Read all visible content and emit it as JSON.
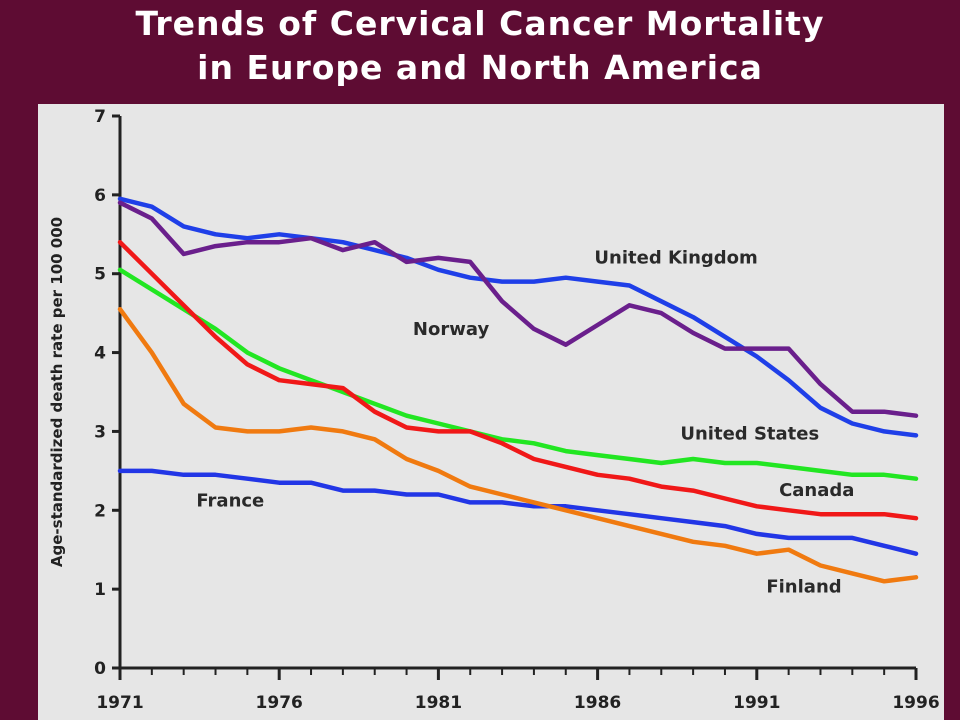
{
  "slide": {
    "title_line1": "Trends of Cervical Cancer Mortality",
    "title_line2": "in Europe and North America"
  },
  "colors": {
    "background": "#5e0c33",
    "panel": "#e6e6e6",
    "axis": "#222222"
  },
  "chart_data": {
    "type": "line",
    "title": "",
    "xlabel": "",
    "ylabel": "Age-standardized death rate per 100 000",
    "xlim": [
      1971,
      1996
    ],
    "ylim": [
      0,
      7
    ],
    "x_tick_labels": [
      "1971",
      "1976",
      "1981",
      "1986",
      "1991",
      "1996"
    ],
    "y_tick_labels": [
      "0",
      "1",
      "2",
      "3",
      "4",
      "5",
      "6",
      "7"
    ],
    "x": [
      1971,
      1972,
      1973,
      1974,
      1975,
      1976,
      1977,
      1978,
      1979,
      1980,
      1981,
      1982,
      1983,
      1984,
      1985,
      1986,
      1987,
      1988,
      1989,
      1990,
      1991,
      1992,
      1993,
      1994,
      1995,
      1996
    ],
    "series": [
      {
        "name": "United Kingdom",
        "color": "#1f3fe8",
        "values": [
          5.95,
          5.85,
          5.6,
          5.5,
          5.45,
          5.5,
          5.45,
          5.4,
          5.3,
          5.2,
          5.05,
          4.95,
          4.9,
          4.9,
          4.95,
          4.9,
          4.85,
          4.65,
          4.45,
          4.2,
          3.95,
          3.65,
          3.3,
          3.1,
          3.0,
          2.95
        ],
        "label_x": 1985.9,
        "label_y": 5.13
      },
      {
        "name": "Norway",
        "color": "#6a1f8c",
        "values": [
          5.9,
          5.7,
          5.25,
          5.35,
          5.4,
          5.4,
          5.45,
          5.3,
          5.4,
          5.15,
          5.2,
          5.15,
          4.65,
          4.3,
          4.1,
          4.35,
          4.6,
          4.5,
          4.25,
          4.05,
          4.05,
          4.05,
          3.6,
          3.25,
          3.25,
          3.2
        ],
        "label_x": 1980.2,
        "label_y": 4.22
      },
      {
        "name": "United States",
        "color": "#22e622",
        "values": [
          5.05,
          4.8,
          4.55,
          4.3,
          4.0,
          3.8,
          3.65,
          3.5,
          3.35,
          3.2,
          3.1,
          3.0,
          2.9,
          2.85,
          2.75,
          2.7,
          2.65,
          2.6,
          2.65,
          2.6,
          2.6,
          2.55,
          2.5,
          2.45,
          2.45,
          2.4
        ],
        "label_x": 1988.6,
        "label_y": 2.9
      },
      {
        "name": "Canada",
        "color": "#f01818",
        "values": [
          5.4,
          5.0,
          4.6,
          4.2,
          3.85,
          3.65,
          3.6,
          3.55,
          3.25,
          3.05,
          3.0,
          3.0,
          2.85,
          2.65,
          2.55,
          2.45,
          2.4,
          2.3,
          2.25,
          2.15,
          2.05,
          2.0,
          1.95,
          1.95,
          1.95,
          1.9
        ],
        "label_x": 1991.7,
        "label_y": 2.18
      },
      {
        "name": "France",
        "color": "#2236e6",
        "values": [
          2.5,
          2.5,
          2.45,
          2.45,
          2.4,
          2.35,
          2.35,
          2.25,
          2.25,
          2.2,
          2.2,
          2.1,
          2.1,
          2.05,
          2.05,
          2.0,
          1.95,
          1.9,
          1.85,
          1.8,
          1.7,
          1.65,
          1.65,
          1.65,
          1.55,
          1.45
        ],
        "label_x": 1973.4,
        "label_y": 2.05
      },
      {
        "name": "Finland",
        "color": "#f07a10",
        "values": [
          4.55,
          4.0,
          3.35,
          3.05,
          3.0,
          3.0,
          3.05,
          3.0,
          2.9,
          2.65,
          2.5,
          2.3,
          2.2,
          2.1,
          2.0,
          1.9,
          1.8,
          1.7,
          1.6,
          1.55,
          1.45,
          1.5,
          1.3,
          1.2,
          1.1,
          1.15
        ],
        "label_x": 1991.3,
        "label_y": 0.96
      }
    ]
  }
}
